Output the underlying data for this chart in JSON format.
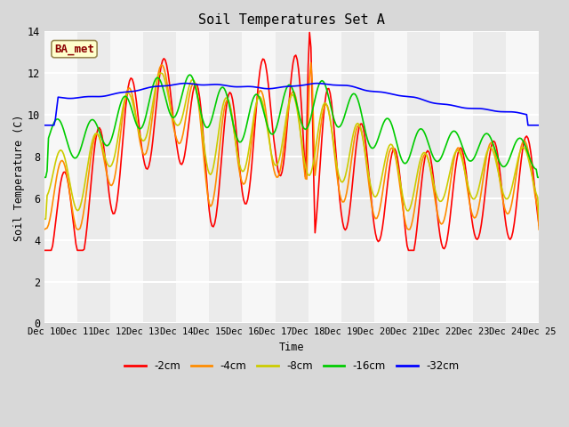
{
  "title": "Soil Temperatures Set A",
  "xlabel": "Time",
  "ylabel": "Soil Temperature (C)",
  "ylim": [
    0,
    14
  ],
  "yticks": [
    0,
    2,
    4,
    6,
    8,
    10,
    12,
    14
  ],
  "x_labels": [
    "Dec 10",
    "Dec 11",
    "Dec 12",
    "Dec 13",
    "Dec 14",
    "Dec 15",
    "Dec 16",
    "Dec 17",
    "Dec 18",
    "Dec 19",
    "Dec 20",
    "Dec 21",
    "Dec 22",
    "Dec 23",
    "Dec 24",
    "Dec 25"
  ],
  "annotation_text": "BA_met",
  "annotation_color": "#8B0000",
  "annotation_bg": "#FFFFCC",
  "line_colors": {
    "-2cm": "#FF0000",
    "-4cm": "#FF8C00",
    "-8cm": "#CCCC00",
    "-16cm": "#00CC00",
    "-32cm": "#0000FF"
  },
  "bg_color": "#D8D8D8",
  "plot_bg": "#EFEFEF",
  "grid_color": "#FFFFFF",
  "font_family": "monospace",
  "title_fontsize": 11
}
